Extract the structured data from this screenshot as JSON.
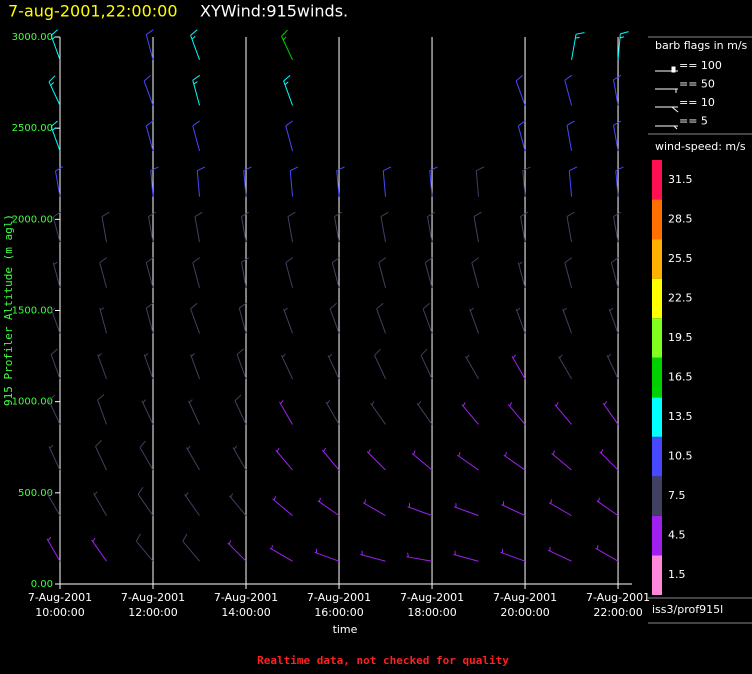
{
  "chart_data": {
    "type": "wind_barbs",
    "title": "7-aug-2001,22:00:00",
    "subtitle": "XYWind:915winds.",
    "x_label": "time",
    "y_label": "915 Profiler Altitude (m agl)",
    "footer": "Realtime data, not checked for quality",
    "station": "iss3/prof915l",
    "xlim": [
      10,
      22.3
    ],
    "xticks": [
      {
        "value": 10,
        "label": "7-Aug-2001\n10:00:00"
      },
      {
        "value": 12,
        "label": "7-Aug-2001\n12:00:00"
      },
      {
        "value": 14,
        "label": "7-Aug-2001\n14:00:00"
      },
      {
        "value": 16,
        "label": "7-Aug-2001\n16:00:00"
      },
      {
        "value": 18,
        "label": "7-Aug-2001\n18:00:00"
      },
      {
        "value": 20,
        "label": "7-Aug-2001\n20:00:00"
      },
      {
        "value": 22,
        "label": "7-Aug-2001\n22:00:00"
      }
    ],
    "ylim": [
      0,
      3000
    ],
    "yticks": [
      {
        "value": 0,
        "label": "0.00"
      },
      {
        "value": 500,
        "label": "500.00"
      },
      {
        "value": 1000,
        "label": "1000.00"
      },
      {
        "value": 1500,
        "label": "1500.00"
      },
      {
        "value": 2000,
        "label": "2000.00"
      },
      {
        "value": 2500,
        "label": "2500.00"
      },
      {
        "value": 3000,
        "label": "3000.00"
      }
    ],
    "grid": true,
    "x": [
      10,
      11,
      12,
      13,
      14,
      15,
      16,
      17,
      18,
      19,
      20,
      21,
      22
    ],
    "altitudes": [
      125,
      375,
      625,
      875,
      1125,
      1375,
      1625,
      1875,
      2125,
      2375,
      2625,
      2875
    ],
    "speeds": [
      [
        6,
        7,
        7,
        8,
        8,
        7,
        7,
        8,
        10,
        14,
        14,
        15
      ],
      [
        6,
        7,
        8,
        8,
        7,
        7,
        8,
        9,
        null,
        null,
        null,
        null
      ],
      [
        9,
        8,
        8,
        7,
        7,
        8,
        8,
        9,
        10,
        11,
        11,
        12
      ],
      [
        8,
        7,
        7,
        7,
        7,
        8,
        8,
        9,
        10,
        11,
        14,
        13
      ],
      [
        6,
        7,
        7,
        8,
        8,
        8,
        9,
        9,
        11,
        null,
        null,
        null
      ],
      [
        5,
        5,
        5,
        6,
        7,
        7,
        8,
        8,
        10,
        11,
        14,
        16
      ],
      [
        4,
        5,
        6,
        7,
        7,
        8,
        8,
        9,
        10,
        null,
        null,
        null
      ],
      [
        4,
        5,
        6,
        7,
        8,
        8,
        8,
        8,
        10,
        null,
        null,
        null
      ],
      [
        5,
        4,
        6,
        7,
        8,
        8,
        8,
        9,
        10,
        null,
        null,
        null
      ],
      [
        5,
        4,
        5,
        6,
        7,
        7,
        8,
        8,
        9,
        null,
        null,
        null
      ],
      [
        5,
        5,
        6,
        6,
        6,
        7,
        7,
        8,
        9,
        10,
        11,
        null
      ],
      [
        5,
        4,
        5,
        6,
        7,
        7,
        8,
        9,
        10,
        11,
        12,
        14
      ],
      [
        5,
        5,
        6,
        6,
        7,
        7,
        8,
        9,
        10,
        11,
        11,
        13
      ]
    ],
    "directions": [
      [
        330,
        330,
        335,
        335,
        340,
        340,
        345,
        345,
        350,
        340,
        335,
        340
      ],
      [
        325,
        330,
        335,
        340,
        340,
        345,
        345,
        350,
        null,
        null,
        null,
        null
      ],
      [
        320,
        325,
        330,
        335,
        340,
        345,
        345,
        350,
        355,
        345,
        340,
        345
      ],
      [
        320,
        325,
        330,
        335,
        340,
        340,
        345,
        350,
        355,
        345,
        345,
        340
      ],
      [
        315,
        320,
        330,
        335,
        340,
        345,
        350,
        350,
        355,
        null,
        null,
        null
      ],
      [
        300,
        310,
        320,
        330,
        335,
        340,
        345,
        350,
        355,
        345,
        340,
        335
      ],
      [
        290,
        305,
        320,
        330,
        335,
        340,
        345,
        350,
        355,
        null,
        null,
        null
      ],
      [
        285,
        300,
        315,
        325,
        335,
        340,
        345,
        350,
        355,
        null,
        null,
        null
      ],
      [
        280,
        290,
        310,
        325,
        335,
        340,
        345,
        350,
        355,
        null,
        null,
        null
      ],
      [
        285,
        290,
        305,
        320,
        330,
        340,
        345,
        350,
        355,
        null,
        null,
        null
      ],
      [
        290,
        295,
        305,
        320,
        330,
        340,
        345,
        350,
        355,
        345,
        340,
        null
      ],
      [
        295,
        300,
        310,
        320,
        330,
        340,
        345,
        350,
        355,
        350,
        345,
        10
      ],
      [
        300,
        305,
        315,
        325,
        335,
        340,
        345,
        350,
        355,
        350,
        350,
        5
      ]
    ],
    "barb_legend": {
      "title": "barb flags in m/s",
      "entries": [
        "== 100",
        "== 50",
        "== 10",
        "== 5"
      ]
    },
    "colorbar": {
      "title": "wind-speed: m/s",
      "labels": [
        1.5,
        4.5,
        7.5,
        10.5,
        13.5,
        16.5,
        19.5,
        22.5,
        25.5,
        28.5,
        31.5
      ],
      "colors": [
        "#ff88dd",
        "#a020f0",
        "#404060",
        "#4848ff",
        "#00ffff",
        "#00d000",
        "#80ff20",
        "#ffff00",
        "#ffb000",
        "#ff7000",
        "#ff1050"
      ]
    }
  }
}
